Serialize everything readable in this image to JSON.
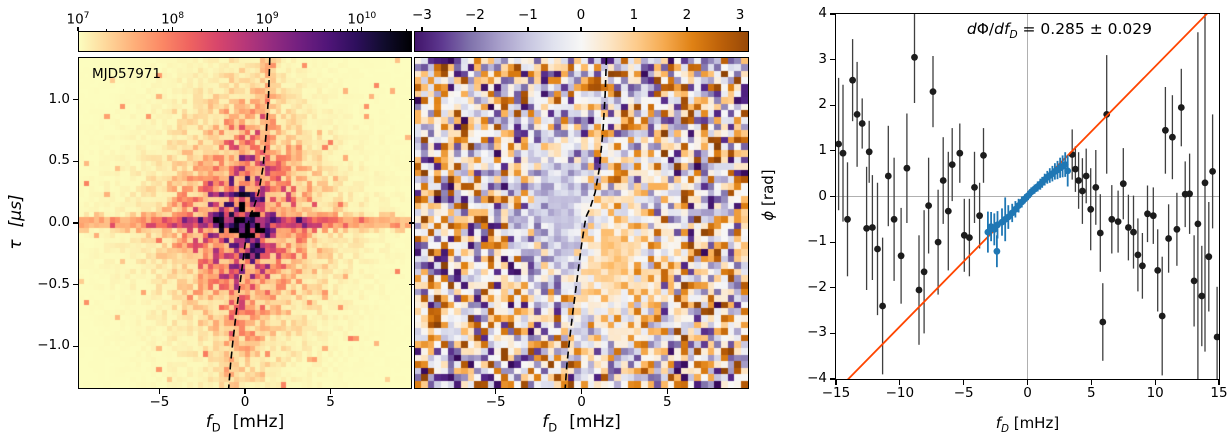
{
  "colors": {
    "background": "#ffffff",
    "accent_line": "#ff4500",
    "blue_point": "#1f77b4",
    "black_point": "#1c1c1c",
    "error_bar": "#3f3f3f",
    "reference_line": "#b0b0b0",
    "dashed_curve": "#000000",
    "magma_r": [
      "#fcfdbf",
      "#fecf92",
      "#fe9f6d",
      "#f7705c",
      "#de4968",
      "#b73779",
      "#8c2981",
      "#641a80",
      "#3b0f70",
      "#140e36",
      "#000004"
    ],
    "puor_r": [
      "#2d004b",
      "#542788",
      "#8073ac",
      "#b2abd2",
      "#d8daeb",
      "#f7f7f7",
      "#fee0b6",
      "#fdb863",
      "#e08214",
      "#b35806",
      "#7f3b08"
    ]
  },
  "chart_data": [
    {
      "type": "heatmap",
      "id": "secondary_spectrum",
      "label": "MJD57971",
      "xlabel": {
        "sym": "f",
        "sub": "D",
        "unit": "[mHz]"
      },
      "ylabel": {
        "sym": "τ",
        "unit": "[μs]"
      },
      "xlim": [
        -9.7,
        9.7
      ],
      "ylim": [
        -1.34,
        1.34
      ],
      "xticks": {
        "values": [
          -5,
          0,
          5
        ],
        "labels": [
          "−5",
          "0",
          "5"
        ]
      },
      "yticks": {
        "values": [
          1.0,
          0.5,
          0.0,
          -0.5,
          -1.0
        ],
        "labels": [
          "1.0",
          "0.5",
          "0.0",
          "−0.5",
          "−1.0"
        ]
      },
      "colorbar": {
        "scale": "log",
        "colormap": "magma_r",
        "domain": [
          7,
          10.53
        ],
        "tick_values": [
          7,
          8,
          9,
          10
        ],
        "tick_labels": [
          {
            "base": "10",
            "exp": "7"
          },
          {
            "base": "10",
            "exp": "8"
          },
          {
            "base": "10",
            "exp": "9"
          },
          {
            "base": "10",
            "exp": "10"
          }
        ]
      },
      "curve": [
        [
          1.45,
          1.34
        ],
        [
          1.38,
          1.05
        ],
        [
          1.25,
          0.75
        ],
        [
          1.05,
          0.45
        ],
        [
          0.8,
          0.25
        ],
        [
          0.5,
          0.12
        ],
        [
          0.3,
          0.06
        ],
        [
          0.2,
          0.0
        ],
        [
          0.0,
          -0.18
        ],
        [
          -0.25,
          -0.45
        ],
        [
          -0.5,
          -0.72
        ],
        [
          -0.7,
          -0.95
        ],
        [
          -0.85,
          -1.15
        ],
        [
          -0.95,
          -1.34
        ]
      ],
      "texture": {
        "seed": 7,
        "nx": 64,
        "ny": 64,
        "blob_center": [
          0,
          0
        ],
        "blob_halfwidth_x": 3.6,
        "blob_halfwidth_y": 0.8,
        "stripe_tau": 0,
        "description": "pixelated power blob (bright core ~1e10 at origin) with horizontal stripe at tau=0 on pale 1e7 background"
      }
    },
    {
      "type": "heatmap",
      "id": "phase_residual_map",
      "label": "",
      "xlabel": {
        "sym": "f",
        "sub": "D",
        "unit": "[mHz]"
      },
      "xlim": [
        -9.7,
        9.7
      ],
      "ylim": [
        -1.34,
        1.34
      ],
      "xticks": {
        "values": [
          -5,
          0,
          5
        ],
        "labels": [
          "−5",
          "0",
          "5"
        ]
      },
      "yticks": {
        "values": [
          1.0,
          0.5,
          0.0,
          -0.5,
          -1.0
        ],
        "labels": []
      },
      "colorbar": {
        "scale": "linear",
        "colormap": "puor_r",
        "domain": [
          -3.15,
          3.17
        ],
        "cmap_range": [
          -3.5,
          3.5
        ],
        "tick_values": [
          -3,
          -2,
          -1,
          0,
          1,
          2,
          3
        ],
        "tick_labels": [
          "−3",
          "−2",
          "−1",
          "0",
          "1",
          "2",
          "3"
        ]
      },
      "curve": [
        [
          1.45,
          1.34
        ],
        [
          1.38,
          1.05
        ],
        [
          1.25,
          0.75
        ],
        [
          1.05,
          0.45
        ],
        [
          0.8,
          0.25
        ],
        [
          0.5,
          0.12
        ],
        [
          0.3,
          0.06
        ],
        [
          0.2,
          0.0
        ],
        [
          0.0,
          -0.18
        ],
        [
          -0.25,
          -0.45
        ],
        [
          -0.5,
          -0.72
        ],
        [
          -0.7,
          -0.95
        ],
        [
          -0.85,
          -1.15
        ],
        [
          -0.95,
          -1.34
        ]
      ],
      "texture": {
        "seed": 13,
        "nx": 50,
        "ny": 50,
        "negative_region_center": [
          -1.1,
          0.05
        ],
        "positive_region_center": [
          1.7,
          -0.3
        ],
        "description": "uniform purple/orange noise with pale bluish patch left of curve and pale orange patch right of curve"
      }
    },
    {
      "type": "scatter",
      "id": "phase_vs_doppler",
      "xlabel": {
        "sym": "f",
        "sub": "D",
        "unit": "[mHz]"
      },
      "ylabel": {
        "sym": "ϕ",
        "unit": "[rad]"
      },
      "xlim": [
        -15,
        15
      ],
      "ylim": [
        -4,
        4
      ],
      "xticks": {
        "values": [
          -15,
          -10,
          -5,
          0,
          5,
          10,
          15
        ],
        "labels": [
          "−15",
          "−10",
          "−5",
          "0",
          "5",
          "10",
          "15"
        ]
      },
      "yticks": {
        "values": [
          4,
          3,
          2,
          1,
          0,
          -1,
          -2,
          -3,
          -4
        ],
        "labels": [
          "4",
          "3",
          "2",
          "1",
          "0",
          "−1",
          "−2",
          "−3",
          "−4"
        ]
      },
      "annotation": {
        "da": "d",
        "phi": "Φ",
        "slash": "/",
        "df": "df",
        "sub": "D",
        "value": " = 0.285 ± 0.029"
      },
      "fit": {
        "slope": 0.285,
        "slope_err": 0.029,
        "intercept": 0
      },
      "reference_lines": {
        "x": 0,
        "y": 0
      },
      "series": [
        {
          "name": "all_phase_points",
          "color_key": "black_point",
          "points": [
            [
              -14.8,
              1.15,
              1.45
            ],
            [
              -14.45,
              0.95,
              1.5
            ],
            [
              -14.1,
              -0.5,
              1.25
            ],
            [
              -13.7,
              2.55,
              0.9
            ],
            [
              -13.35,
              1.8,
              1.15
            ],
            [
              -12.95,
              1.6,
              0.55
            ],
            [
              -12.6,
              -0.7,
              1.35
            ],
            [
              -12.4,
              0.98,
              0.68
            ],
            [
              -12.15,
              -0.68,
              1.15
            ],
            [
              -11.75,
              -1.15,
              1.45
            ],
            [
              -11.35,
              -2.4,
              1.5
            ],
            [
              -10.9,
              0.45,
              1.1
            ],
            [
              -10.45,
              -0.5,
              1.35
            ],
            [
              -9.9,
              -1.3,
              1.05
            ],
            [
              -9.45,
              0.62,
              1.2
            ],
            [
              -8.85,
              3.05,
              1.0
            ],
            [
              -8.5,
              -2.05,
              1.2
            ],
            [
              -8.1,
              -1.65,
              1.35
            ],
            [
              -7.75,
              -0.2,
              1.05
            ],
            [
              -7.4,
              2.3,
              0.78
            ],
            [
              -7.0,
              -1.0,
              1.15
            ],
            [
              -6.6,
              0.35,
              0.95
            ],
            [
              -6.2,
              -0.32,
              1.3
            ],
            [
              -5.9,
              0.7,
              0.8
            ],
            [
              -5.3,
              0.95,
              0.65
            ],
            [
              -4.95,
              -0.85,
              0.8
            ],
            [
              -4.55,
              -0.9,
              0.85
            ],
            [
              -4.15,
              0.2,
              0.78
            ],
            [
              -3.75,
              -0.42,
              0.72
            ],
            [
              -3.45,
              0.9,
              0.6
            ],
            [
              3.5,
              0.92,
              0.55
            ],
            [
              3.75,
              0.6,
              0.5
            ],
            [
              4.0,
              0.35,
              0.62
            ],
            [
              4.3,
              0.12,
              0.72
            ],
            [
              4.6,
              0.45,
              0.6
            ],
            [
              4.95,
              -0.28,
              0.9
            ],
            [
              5.35,
              0.2,
              0.82
            ],
            [
              5.7,
              -0.8,
              0.85
            ],
            [
              5.9,
              -2.75,
              0.85
            ],
            [
              6.2,
              1.8,
              1.3
            ],
            [
              6.6,
              -0.5,
              0.75
            ],
            [
              7.1,
              -0.55,
              0.68
            ],
            [
              7.5,
              0.28,
              0.78
            ],
            [
              7.9,
              -0.68,
              0.72
            ],
            [
              8.3,
              -0.78,
              0.8
            ],
            [
              8.65,
              -1.28,
              0.8
            ],
            [
              9.0,
              -1.52,
              0.72
            ],
            [
              9.4,
              -0.38,
              0.62
            ],
            [
              9.85,
              -0.42,
              0.62
            ],
            [
              10.2,
              -1.62,
              0.9
            ],
            [
              10.55,
              -2.62,
              1.3
            ],
            [
              10.8,
              1.45,
              0.95
            ],
            [
              11.05,
              -0.92,
              0.75
            ],
            [
              11.35,
              1.3,
              0.92
            ],
            [
              11.7,
              -0.72,
              0.8
            ],
            [
              12.05,
              1.95,
              0.85
            ],
            [
              12.35,
              0.05,
              0.72
            ],
            [
              12.7,
              0.06,
              0.88
            ],
            [
              13.05,
              -1.85,
              1.0
            ],
            [
              13.35,
              -0.6,
              4.2
            ],
            [
              13.65,
              -2.18,
              1.1
            ],
            [
              13.9,
              0.3,
              3.7
            ],
            [
              14.2,
              -1.32,
              1.2
            ],
            [
              14.5,
              0.55,
              1.25
            ],
            [
              14.85,
              -3.08,
              1.1
            ]
          ]
        },
        {
          "name": "fitted_phase_points",
          "color_key": "blue_point",
          "points": [
            [
              -3.1,
              -0.78,
              0.45
            ],
            [
              -2.85,
              -0.66,
              0.32
            ],
            [
              -2.6,
              -0.72,
              0.35
            ],
            [
              -2.4,
              -1.2,
              0.35
            ],
            [
              -2.35,
              -0.62,
              0.3
            ],
            [
              -2.0,
              -0.56,
              0.3
            ],
            [
              -1.75,
              -0.5,
              0.48
            ],
            [
              -1.5,
              -0.45,
              0.26
            ],
            [
              -1.2,
              -0.36,
              0.2
            ],
            [
              -0.95,
              -0.28,
              0.18
            ],
            [
              -0.7,
              -0.2,
              0.15
            ],
            [
              -0.45,
              -0.12,
              0.12
            ],
            [
              -0.2,
              -0.05,
              0.1
            ],
            [
              0.05,
              0.02,
              0.1
            ],
            [
              0.3,
              0.1,
              0.1
            ],
            [
              0.55,
              0.16,
              0.1
            ],
            [
              0.8,
              0.22,
              0.11
            ],
            [
              1.0,
              0.27,
              0.12
            ],
            [
              1.15,
              0.31,
              0.12
            ],
            [
              1.35,
              0.37,
              0.13
            ],
            [
              1.55,
              0.42,
              0.14
            ],
            [
              1.75,
              0.46,
              0.16
            ],
            [
              1.95,
              0.5,
              0.17
            ],
            [
              2.15,
              0.55,
              0.18
            ],
            [
              2.35,
              0.58,
              0.2
            ],
            [
              2.55,
              0.63,
              0.22
            ],
            [
              2.75,
              0.66,
              0.24
            ],
            [
              2.95,
              0.7,
              0.27
            ],
            [
              3.15,
              0.56,
              0.34
            ]
          ]
        }
      ]
    }
  ]
}
